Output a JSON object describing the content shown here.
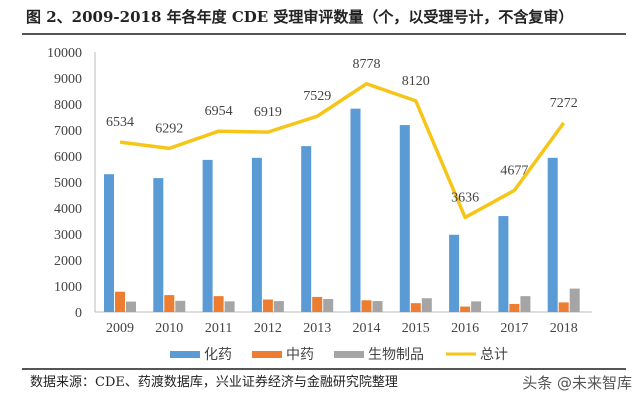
{
  "chart_data": {
    "type": "bar",
    "title": "图 2、2009-2018 年各年度 CDE 受理审评数量（个，以受理号计，不含复审）",
    "categories": [
      "2009",
      "2010",
      "2011",
      "2012",
      "2013",
      "2014",
      "2015",
      "2016",
      "2017",
      "2018"
    ],
    "ylim": [
      0,
      10000
    ],
    "yticks": [
      "0",
      "1000",
      "2000",
      "3000",
      "4000",
      "5000",
      "6000",
      "7000",
      "8000",
      "9000",
      "10000"
    ],
    "grid": false,
    "legend_position": "bottom",
    "series": [
      {
        "name": "化药",
        "kind": "bar",
        "color": "#5b9bd5",
        "values": [
          5300,
          5150,
          5850,
          5930,
          6380,
          7820,
          7190,
          2970,
          3690,
          5930
        ]
      },
      {
        "name": "中药",
        "kind": "bar",
        "color": "#ed7d31",
        "values": [
          780,
          650,
          610,
          480,
          580,
          450,
          340,
          210,
          310,
          370
        ]
      },
      {
        "name": "生物制品",
        "kind": "bar",
        "color": "#a5a5a5",
        "values": [
          400,
          430,
          410,
          420,
          500,
          420,
          530,
          410,
          610,
          900
        ]
      },
      {
        "name": "总计",
        "kind": "line",
        "color": "#f5c518",
        "values": [
          6534,
          6292,
          6954,
          6919,
          7529,
          8778,
          8120,
          3636,
          4677,
          7272
        ],
        "labels": [
          "6534",
          "6292",
          "6954",
          "6919",
          "7529",
          "8778",
          "8120",
          "3636",
          "4677",
          "7272"
        ]
      }
    ]
  },
  "source": "数据来源：CDE、药渡数据库，兴业证券经济与金融研究院整理",
  "watermark": "头条 @未来智库"
}
